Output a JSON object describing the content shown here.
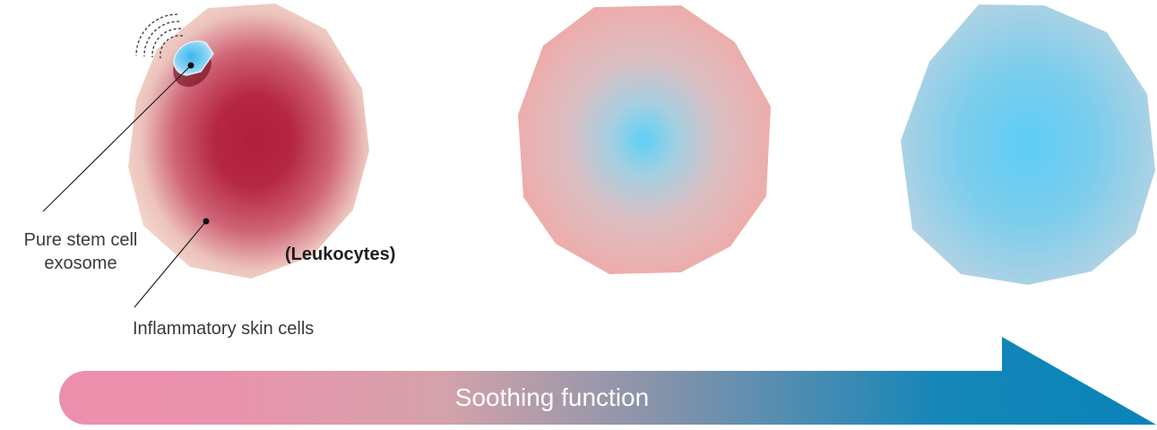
{
  "labels": {
    "exosome_line1": "Pure stem cell",
    "exosome_line2": "exosome",
    "inflammatory": "Inflammatory skin cells",
    "leukocytes": "(Leukocytes)",
    "arrow": "Soothing function"
  },
  "colors": {
    "inflamed_core": "#b42540",
    "inflamed_edge": "#f0cfc4",
    "soothed_core": "#5fcff5",
    "soothed_edge": "#b4d3e3",
    "arrow_start": "#ec8fad",
    "arrow_end": "#0984b8",
    "leader_line": "#222222"
  },
  "cells": [
    {
      "name": "cell-inflamed",
      "state": "inflamed"
    },
    {
      "name": "cell-transition",
      "state": "transition"
    },
    {
      "name": "cell-soothed",
      "state": "soothed"
    }
  ],
  "icons": [
    "signal-waves-icon",
    "exosome-icon"
  ]
}
